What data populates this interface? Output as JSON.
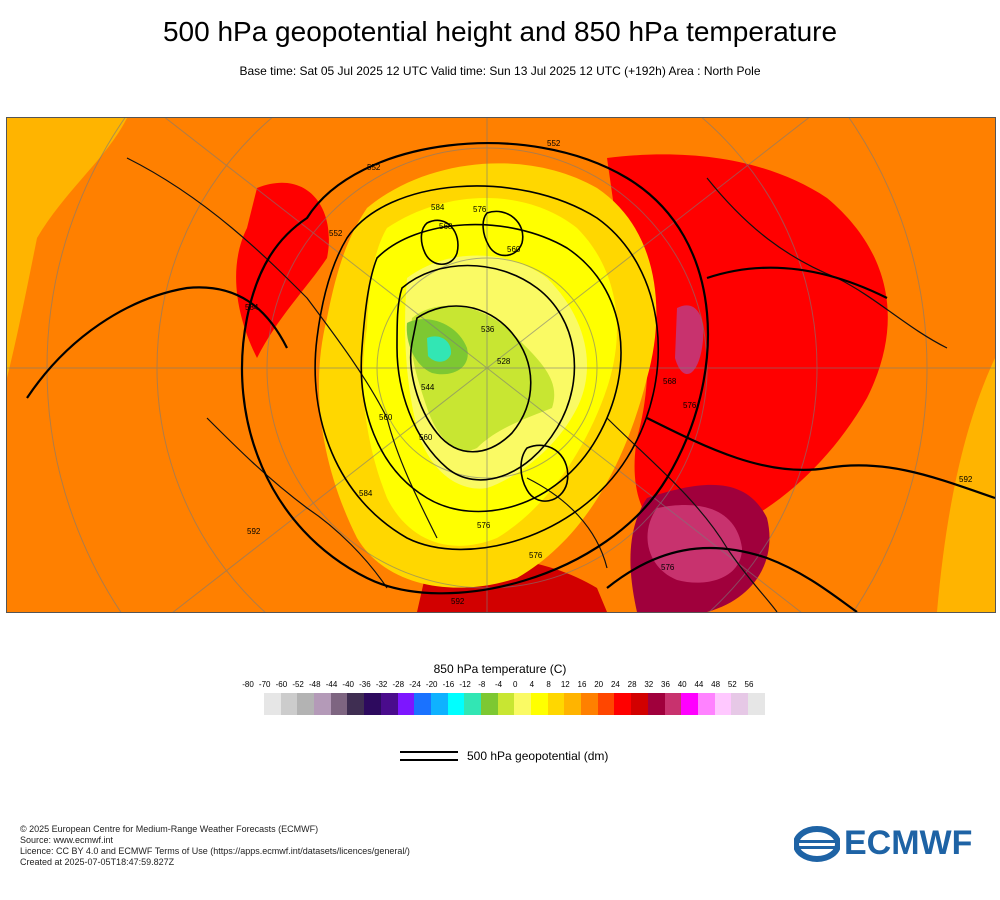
{
  "header": {
    "title": "500 hPa geopotential height and 850 hPa temperature",
    "subtitle": "Base time: Sat 05 Jul 2025 12 UTC Valid time: Sun 13 Jul 2025 12 UTC (+192h) Area : North Pole"
  },
  "map": {
    "projection": "polar stereographic",
    "area": "North Pole",
    "contour_labels": [
      "552",
      "584",
      "576",
      "568",
      "560",
      "552",
      "552",
      "584",
      "576",
      "576",
      "592",
      "544",
      "536",
      "528",
      "560",
      "560",
      "568",
      "576",
      "584",
      "592",
      "592",
      "576"
    ]
  },
  "legend": {
    "title": "850 hPa temperature (C)",
    "ticks": [
      "-80",
      "-70",
      "-60",
      "-52",
      "-48",
      "-44",
      "-40",
      "-36",
      "-32",
      "-28",
      "-24",
      "-20",
      "-16",
      "-12",
      "-8",
      "-4",
      "0",
      "4",
      "8",
      "12",
      "16",
      "20",
      "24",
      "28",
      "32",
      "36",
      "40",
      "44",
      "48",
      "52",
      "56"
    ],
    "colors": [
      "#e6e6e6",
      "#cccccc",
      "#b3b3b3",
      "#b49ab8",
      "#7e6581",
      "#3f2e52",
      "#2d0a5e",
      "#4a0c8c",
      "#7d16ff",
      "#1a72ff",
      "#0fb2ff",
      "#00ffff",
      "#32e6b4",
      "#7dc832",
      "#c8e632",
      "#fafa64",
      "#ffff00",
      "#ffd700",
      "#ffb400",
      "#ff8000",
      "#ff4600",
      "#ff0000",
      "#d20000",
      "#a0003c",
      "#c8326e",
      "#ff00ff",
      "#ff82ff",
      "#ffc8ff",
      "#e6c8e6",
      "#e6e6e6"
    ],
    "line_label": "500 hPa geopotential (dm)"
  },
  "footer": {
    "lines": [
      "© 2025 European Centre for Medium-Range Weather Forecasts (ECMWF)",
      "Source: www.ecmwf.int",
      "Licence: CC BY 4.0 and ECMWF Terms of Use (https://apps.ecmwf.int/datasets/licences/general/)",
      "Created at 2025-07-05T18:47:59.827Z"
    ],
    "logo_text": "ECMWF"
  }
}
